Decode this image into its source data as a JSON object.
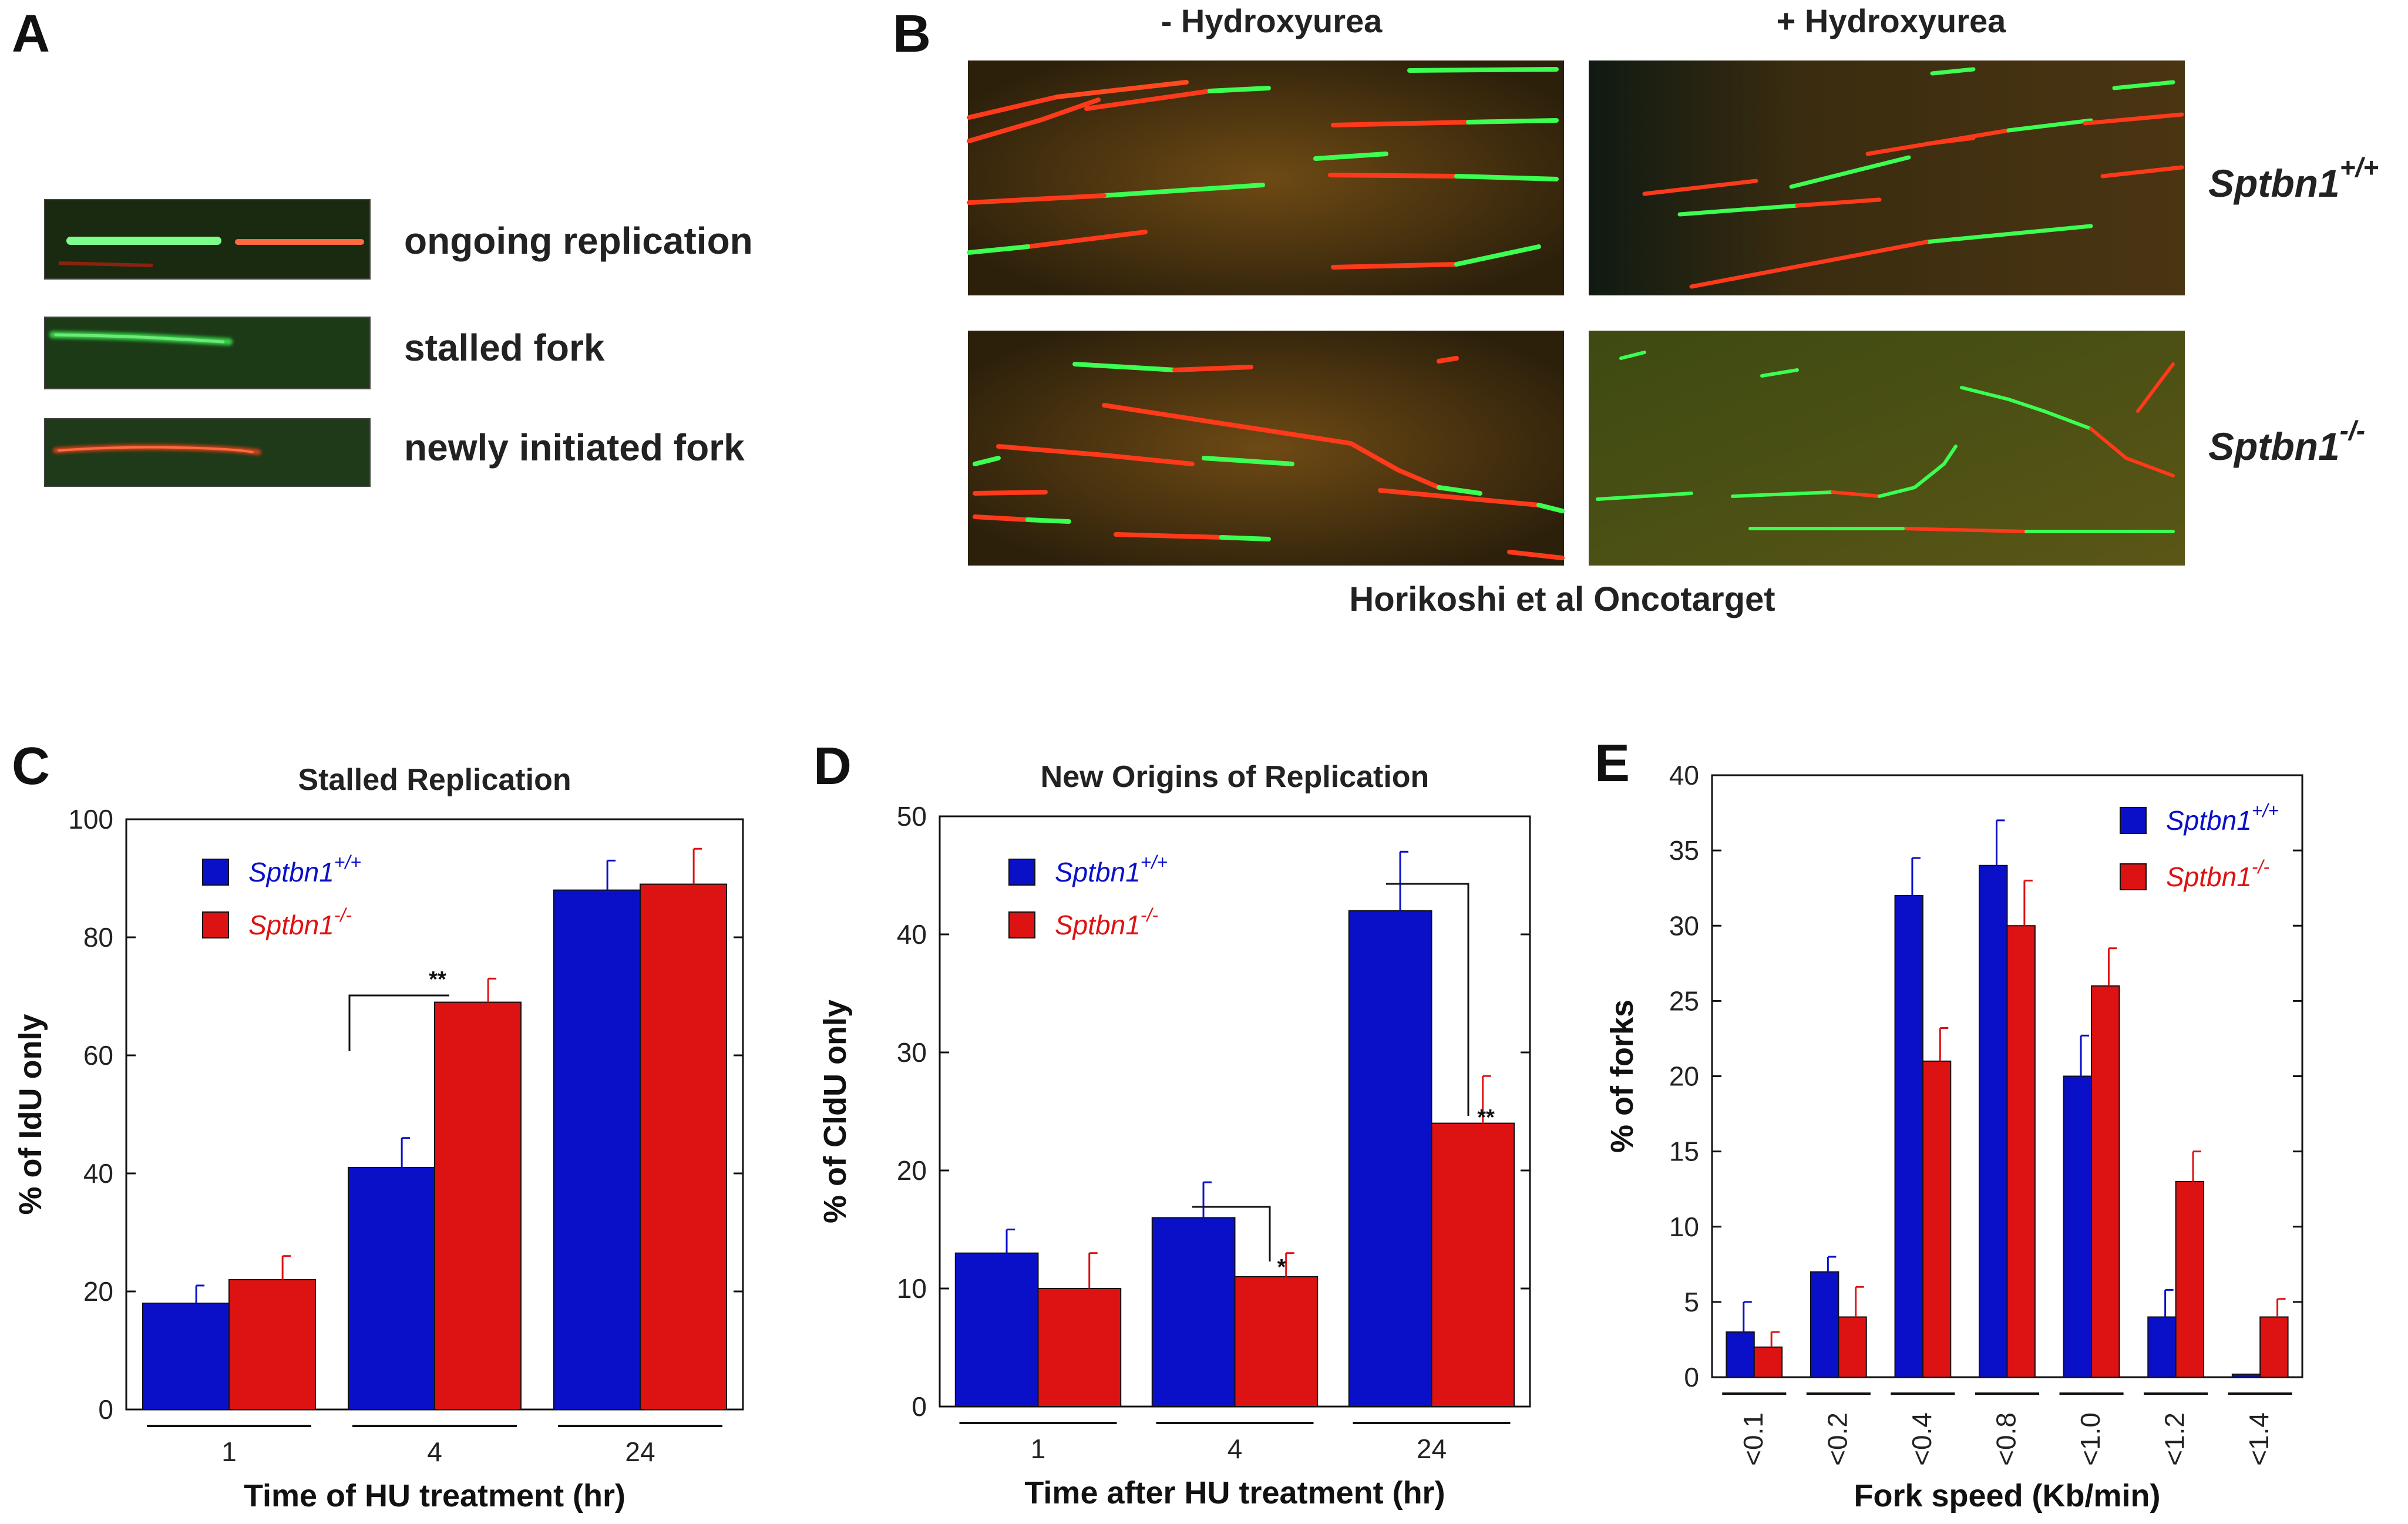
{
  "panel_a": {
    "letter": "A",
    "rows": [
      {
        "label": "ongoing replication"
      },
      {
        "label": "stalled fork"
      },
      {
        "label": "newly initiated fork"
      }
    ]
  },
  "panel_b": {
    "letter": "B",
    "col_minus": "- Hydroxyurea",
    "col_plus": "+ Hydroxyurea",
    "row_wt_base": "Sptbn1",
    "row_wt_sup": "+/+",
    "row_ko_base": "Sptbn1",
    "row_ko_sup": "-/-",
    "credit": "Horikoshi et al Oncotarget"
  },
  "colors": {
    "wt": "#0a10c8",
    "ko": "#dd1212",
    "ink": "#111111"
  },
  "chart_data": [
    {
      "panel": "C",
      "type": "bar",
      "title": "Stalled Replication",
      "xlabel": "Time of HU treatment (hr)",
      "ylabel": "% of IdU only",
      "categories": [
        "1",
        "4",
        "24"
      ],
      "ylim": [
        0,
        100
      ],
      "yticks": [
        "0",
        "20",
        "40",
        "60",
        "80",
        "100"
      ],
      "series": [
        {
          "name_base": "Sptbn1",
          "name_sup": "+/+",
          "values": [
            18,
            41,
            88
          ],
          "errors": [
            3,
            5,
            5
          ]
        },
        {
          "name_base": "Sptbn1",
          "name_sup": "-/-",
          "values": [
            22,
            69,
            89
          ],
          "errors": [
            4,
            4,
            6
          ]
        }
      ],
      "significance": [
        {
          "category": "4",
          "label": "**"
        }
      ]
    },
    {
      "panel": "D",
      "type": "bar",
      "title": "New Origins of Replication",
      "xlabel": "Time after HU treatment (hr)",
      "ylabel": "% of CldU only",
      "categories": [
        "1",
        "4",
        "24"
      ],
      "ylim": [
        0,
        50
      ],
      "yticks": [
        "0",
        "10",
        "20",
        "30",
        "40",
        "50"
      ],
      "series": [
        {
          "name_base": "Sptbn1",
          "name_sup": "+/+",
          "values": [
            13,
            16,
            42
          ],
          "errors": [
            2,
            3,
            5
          ]
        },
        {
          "name_base": "Sptbn1",
          "name_sup": "-/-",
          "values": [
            10,
            11,
            24
          ],
          "errors": [
            3,
            2,
            4
          ]
        }
      ],
      "significance": [
        {
          "category": "4",
          "label": "*"
        },
        {
          "category": "24",
          "label": "**"
        }
      ]
    },
    {
      "panel": "E",
      "type": "bar",
      "title": "",
      "xlabel": "Fork speed (Kb/min)",
      "ylabel": "% of forks",
      "categories": [
        "<0.1",
        "<0.2",
        "<0.4",
        "<0.8",
        "<1.0",
        "<1.2",
        "<1.4"
      ],
      "ylim": [
        0,
        40
      ],
      "yticks": [
        "0",
        "5",
        "10",
        "15",
        "20",
        "25",
        "30",
        "35",
        "40"
      ],
      "series": [
        {
          "name_base": "Sptbn1",
          "name_sup": "+/+",
          "values": [
            3,
            7,
            32,
            34,
            20,
            4,
            0.2
          ],
          "errors": [
            2,
            1,
            2.5,
            3,
            2.7,
            1.8,
            0
          ]
        },
        {
          "name_base": "Sptbn1",
          "name_sup": "-/-",
          "values": [
            2,
            4,
            21,
            30,
            26,
            13,
            4
          ],
          "errors": [
            1,
            2,
            2.2,
            3,
            2.5,
            2,
            1.2
          ]
        }
      ],
      "significance": []
    }
  ]
}
